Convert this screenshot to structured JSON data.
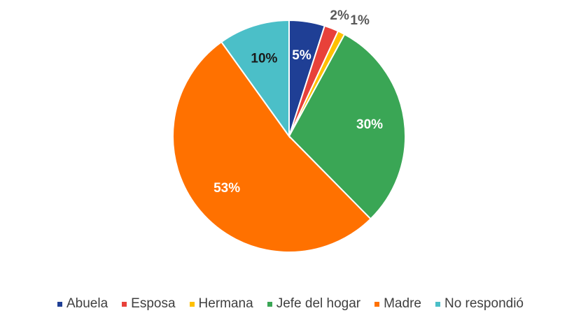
{
  "chart_data": {
    "type": "pie",
    "categories": [
      "Abuela",
      "Esposa",
      "Hermana",
      "Jefe del hogar",
      "Madre",
      "No respondió"
    ],
    "values": [
      5,
      2,
      1,
      30,
      53,
      10
    ],
    "value_labels": [
      "5%",
      "2%",
      "1%",
      "30%",
      "53%",
      "10%"
    ],
    "colors": [
      "#1f3f95",
      "#e8413a",
      "#ffc000",
      "#3aa655",
      "#ff7100",
      "#4bbfc8"
    ],
    "legend": "bottom"
  }
}
